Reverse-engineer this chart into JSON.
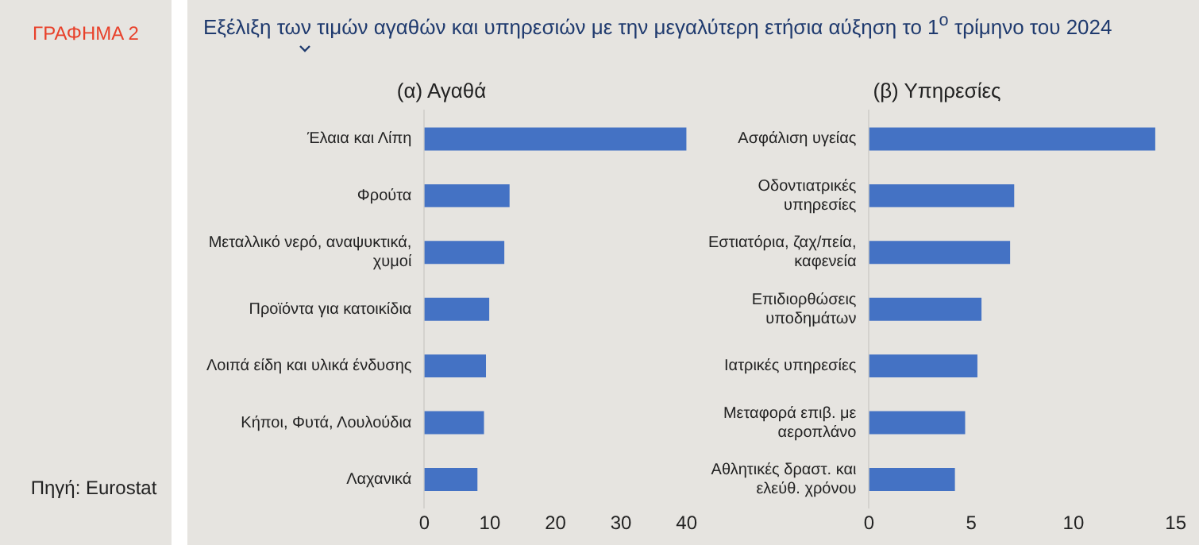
{
  "chart_data": [
    {
      "type": "bar",
      "orientation": "horizontal",
      "title": "(α) Αγαθά",
      "annotations": [
        "ΓΡΑΦΗΜΑ 2",
        "Εξέλιξη των τιμών αγαθών και υπηρεσιών με την μεγαλύτερη ετήσια αύξηση το 1$^{ο}$ τρίμηνο του 2024",
        "Πηγή: Eurostat"
      ],
      "categories": [
        "Έλαια και Λίπη",
        "Φρούτα",
        "Μεταλλικό νερό, αναψυκτικά, χυμοί",
        "Προϊόντα για κατοικίδια",
        "Λοιπά είδη και υλικά ένδυσης",
        "Κήποι, Φυτά, Λουλούδια",
        "Λαχανικά"
      ],
      "values": [
        40,
        13.0,
        12.2,
        9.9,
        9.4,
        9.1,
        8.1
      ],
      "color": "#4472c4",
      "xlim": [
        0,
        40
      ],
      "xticks": [
        0,
        10,
        20,
        30,
        40
      ],
      "grid": false,
      "legend": false
    },
    {
      "type": "bar",
      "orientation": "horizontal",
      "title": "(β) Υπηρεσίες",
      "categories": [
        "Ασφάλιση υγείας",
        "Οδοντιατρικές υπηρεσίες",
        "Εστιατόρια, ζαχ/πεία, καφενεία",
        "Επιδιορθώσεις υποδημάτων",
        "Ιατρικές υπηρεσίες",
        "Μεταφορά επιβ. με αεροπλάνο",
        "Αθλητικές δραστ. και ελεύθ. χρόνου"
      ],
      "values": [
        14.0,
        7.1,
        6.9,
        5.5,
        5.3,
        4.7,
        4.2
      ],
      "color": "#4472c4",
      "xlim": [
        0,
        15
      ],
      "xticks": [
        0,
        5,
        10,
        15
      ],
      "grid": false,
      "legend": false
    }
  ]
}
